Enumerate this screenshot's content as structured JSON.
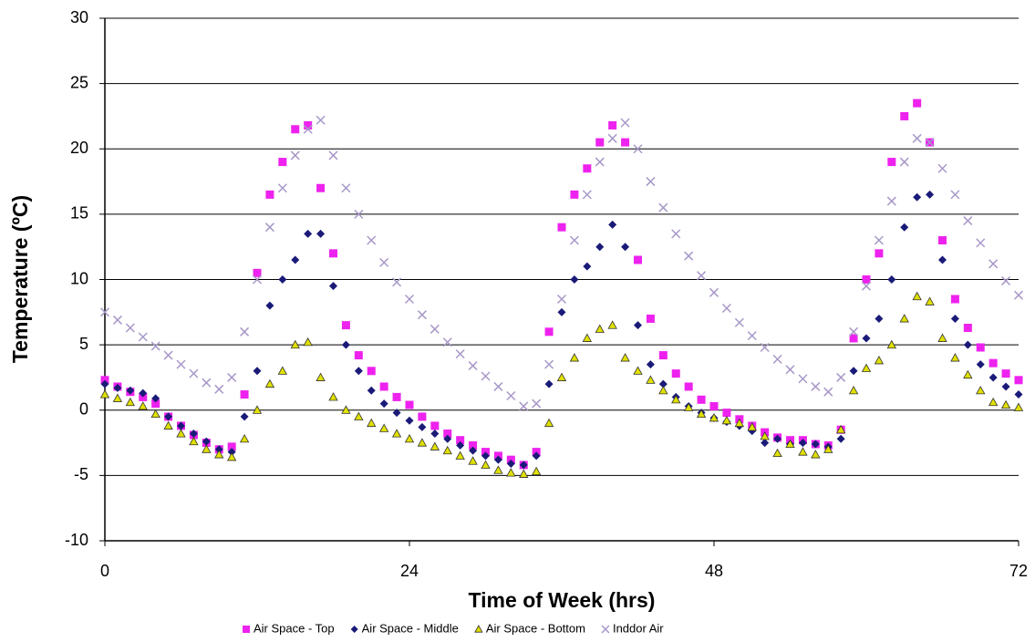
{
  "chart_data": {
    "type": "scatter",
    "xlabel": "Time of Week (hrs)",
    "ylabel": "Temperature (ºC)",
    "x": [
      0,
      1,
      2,
      3,
      4,
      5,
      6,
      7,
      8,
      9,
      10,
      11,
      12,
      13,
      14,
      15,
      16,
      17,
      18,
      19,
      20,
      21,
      22,
      23,
      24,
      25,
      26,
      27,
      28,
      29,
      30,
      31,
      32,
      33,
      34,
      35,
      36,
      37,
      38,
      39,
      40,
      41,
      42,
      43,
      44,
      45,
      46,
      47,
      48,
      49,
      50,
      51,
      52,
      53,
      54,
      55,
      56,
      57,
      58,
      59,
      60,
      61,
      62,
      63,
      64,
      65,
      66,
      67,
      68,
      69,
      70,
      71,
      72
    ],
    "xlim": [
      0,
      72
    ],
    "xticks": [
      0,
      24,
      48,
      72
    ],
    "ylim": [
      -10,
      30
    ],
    "yticks": [
      -10,
      -5,
      0,
      5,
      10,
      15,
      20,
      25,
      30
    ],
    "grid": true,
    "legend": "bottom",
    "series": [
      {
        "name": "Air Space - Top",
        "color": "#ee22ee",
        "marker": "square",
        "values": [
          2.3,
          1.8,
          1.4,
          1.0,
          0.5,
          -0.5,
          -1.2,
          -1.9,
          -2.5,
          -3.0,
          -2.8,
          1.2,
          10.5,
          16.5,
          19,
          21.5,
          21.8,
          17,
          12,
          6.5,
          4.2,
          3,
          1.8,
          1,
          0.4,
          -0.5,
          -1.2,
          -1.8,
          -2.3,
          -2.7,
          -3.2,
          -3.5,
          -3.8,
          -4.2,
          -3.2,
          6,
          14,
          16.5,
          18.5,
          20.5,
          21.8,
          20.5,
          11.5,
          7,
          4.2,
          2.8,
          1.8,
          0.8,
          0.3,
          -0.2,
          -0.7,
          -1.2,
          -1.7,
          -2.1,
          -2.3,
          -2.3,
          -2.6,
          -2.7,
          -1.5,
          5.5,
          10,
          12,
          19,
          22.5,
          23.5,
          20.5,
          13,
          8.5,
          6.3,
          4.8,
          3.6,
          2.8,
          2.3
        ]
      },
      {
        "name": "Air Space - Middle",
        "color": "#1a1a78",
        "marker": "diamond",
        "values": [
          2.0,
          1.7,
          1.5,
          1.3,
          0.9,
          -0.5,
          -1.2,
          -1.8,
          -2.4,
          -3.0,
          -3.2,
          -0.5,
          3,
          8,
          10,
          11.5,
          13.5,
          13.5,
          9.5,
          5,
          3,
          1.5,
          0.5,
          -0.2,
          -0.8,
          -1.3,
          -1.8,
          -2.2,
          -2.7,
          -3.1,
          -3.5,
          -3.8,
          -4.1,
          -4.2,
          -3.5,
          2,
          7.5,
          10,
          11,
          12.5,
          14.2,
          12.5,
          6.5,
          3.5,
          2,
          1,
          0.3,
          -0.2,
          -0.6,
          -0.9,
          -1.2,
          -1.6,
          -2.5,
          -2.2,
          -2.6,
          -2.5,
          -2.6,
          -2.8,
          -2.2,
          3,
          5.5,
          7,
          10,
          14,
          16.3,
          16.5,
          11.5,
          7,
          5,
          3.5,
          2.5,
          1.8,
          1.2
        ]
      },
      {
        "name": "Air Space - Bottom",
        "color": "#e0e000",
        "marker": "triangle",
        "values": [
          1.2,
          0.9,
          0.6,
          0.3,
          -0.3,
          -1.2,
          -1.8,
          -2.4,
          -3.0,
          -3.4,
          -3.6,
          -2.2,
          0,
          2,
          3,
          5,
          5.2,
          2.5,
          1,
          0,
          -0.5,
          -1,
          -1.4,
          -1.8,
          -2.2,
          -2.5,
          -2.8,
          -3.1,
          -3.5,
          -3.9,
          -4.2,
          -4.6,
          -4.8,
          -4.9,
          -4.7,
          -1,
          2.5,
          4,
          5.5,
          6.2,
          6.5,
          4,
          3,
          2.3,
          1.5,
          0.8,
          0.2,
          -0.3,
          -0.6,
          -0.8,
          -1,
          -1.3,
          -2,
          -3.3,
          -2.6,
          -3.2,
          -3.4,
          -3,
          -1.5,
          1.5,
          3.2,
          3.8,
          5,
          7,
          8.7,
          8.3,
          5.5,
          4,
          2.7,
          1.5,
          0.6,
          0.4,
          0.2
        ]
      },
      {
        "name": "Inddor Air",
        "color": "#a898c8",
        "marker": "cross",
        "values": [
          7.5,
          6.9,
          6.3,
          5.6,
          4.9,
          4.2,
          3.5,
          2.8,
          2.1,
          1.6,
          2.5,
          6,
          10,
          14,
          17,
          19.5,
          21.5,
          22.2,
          19.5,
          17,
          15,
          13,
          11.3,
          9.8,
          8.5,
          7.3,
          6.2,
          5.2,
          4.3,
          3.4,
          2.6,
          1.8,
          1.1,
          0.3,
          0.5,
          3.5,
          8.5,
          13,
          16.5,
          19,
          20.8,
          22,
          20,
          17.5,
          15.5,
          13.5,
          11.8,
          10.3,
          9,
          7.8,
          6.7,
          5.7,
          4.8,
          3.9,
          3.1,
          2.4,
          1.8,
          1.4,
          2.5,
          6,
          9.5,
          13,
          16,
          19,
          20.8,
          20.5,
          18.5,
          16.5,
          14.5,
          12.8,
          11.2,
          9.9,
          8.8
        ]
      }
    ]
  }
}
